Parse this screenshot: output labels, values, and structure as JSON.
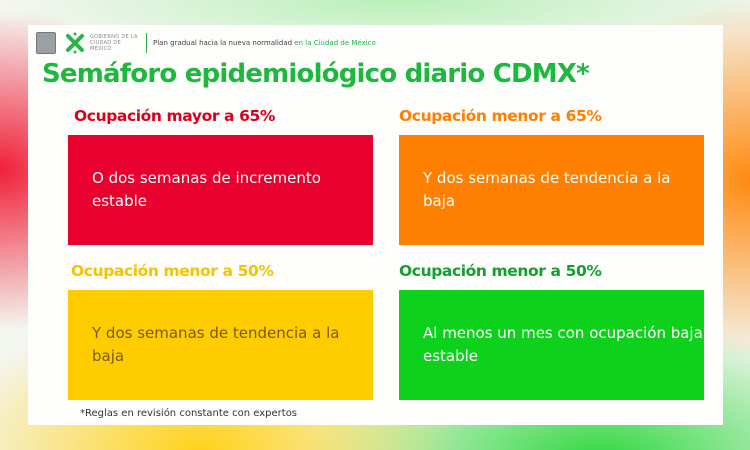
{
  "header": {
    "gov_line1": "GOBIERNO DE LA",
    "gov_line2": "CIUDAD DE MÉXICO",
    "plan_text": "Plan gradual hacia la nueva normalidad ",
    "plan_highlight": "en la Ciudad de México"
  },
  "title": "Semáforo epidemiológico diario CDMX*",
  "levels": [
    {
      "heading": "Ocupación mayor a 65%",
      "text": "O dos semanas de incremento estable",
      "color": "#e8002e",
      "heading_color": "#d9001f",
      "text_color": "#ffffff"
    },
    {
      "heading": "Ocupación menor a 65%",
      "text": "Y dos semanas de tendencia a la baja",
      "color": "#ff8000",
      "heading_color": "#ff7f00",
      "text_color": "#ffffff"
    },
    {
      "heading": "Ocupación menor a 50%",
      "text": "Y dos semanas de tendencia a la baja",
      "color": "#ffcc00",
      "heading_color": "#f5c400",
      "text_color": "#7a5a10"
    },
    {
      "heading": "Ocupación menor a 50%",
      "text": "Al menos un mes con ocupación baja estable",
      "color": "#0dd11a",
      "heading_color": "#12a030",
      "text_color": "#ffffff"
    }
  ],
  "footnote": "*Reglas en revisión constante con expertos"
}
